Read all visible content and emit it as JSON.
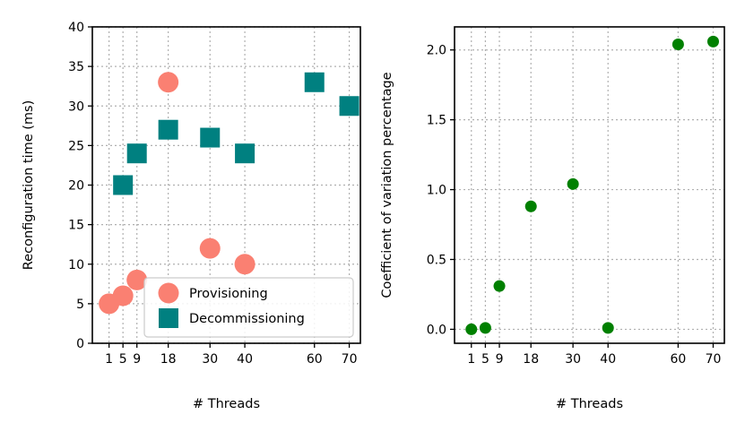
{
  "chart_data": [
    {
      "type": "scatter",
      "title": "",
      "xlabel": "# Threads",
      "ylabel": "Reconfiguration time (ms)",
      "xticks": [
        1,
        5,
        9,
        18,
        30,
        40,
        60,
        70
      ],
      "xlim": [
        -3.8,
        73.2
      ],
      "ylim": [
        0,
        40
      ],
      "yticks": [
        0,
        5,
        10,
        15,
        20,
        25,
        30,
        35,
        40
      ],
      "grid": true,
      "legend_position": "bottom-right",
      "series": [
        {
          "name": "Provisioning",
          "marker": "circle",
          "color": "#fa8072",
          "x": [
            1,
            5,
            9,
            18,
            30,
            40
          ],
          "y": [
            5,
            6,
            8,
            33,
            12,
            10
          ]
        },
        {
          "name": "Decommissioning",
          "marker": "square",
          "color": "#008080",
          "x": [
            5,
            9,
            18,
            30,
            40,
            60,
            70
          ],
          "y": [
            20,
            24,
            27,
            26,
            24,
            33,
            30
          ]
        }
      ]
    },
    {
      "type": "scatter",
      "title": "",
      "xlabel": "# Threads",
      "ylabel": "Coefficient of variation percentage",
      "xticks": [
        1,
        5,
        9,
        18,
        30,
        40,
        60,
        70
      ],
      "xlim": [
        -3.8,
        73.2
      ],
      "ylim": [
        -0.1,
        2.165
      ],
      "yticks": [
        0.0,
        0.5,
        1.0,
        1.5,
        2.0
      ],
      "grid": true,
      "series": [
        {
          "marker": "circle",
          "color": "#008000",
          "x": [
            1,
            5,
            9,
            18,
            30,
            40,
            60,
            70
          ],
          "y": [
            0.0,
            0.01,
            0.31,
            0.88,
            1.04,
            0.01,
            2.04,
            2.06
          ]
        }
      ]
    }
  ]
}
